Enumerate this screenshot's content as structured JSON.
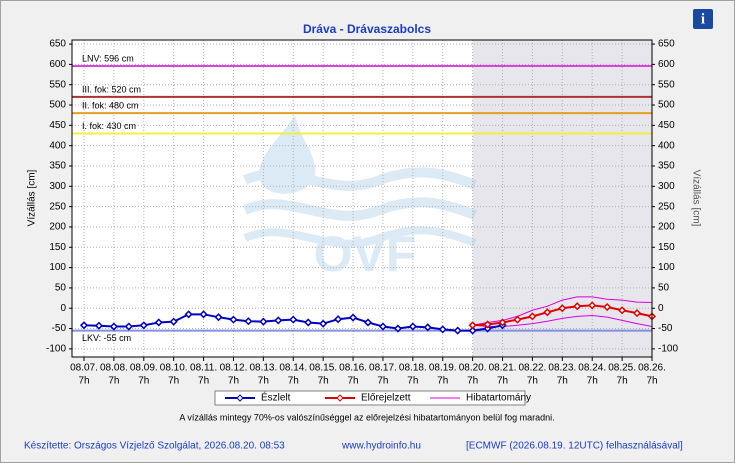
{
  "chart_data": {
    "type": "line",
    "title": "Dráva - Drávaszabolcs",
    "y_label": "Vízállás [cm]",
    "y2_label": "Vízállás [cm]",
    "info_button": "i",
    "watermark": "OVF",
    "categories": [
      "08.07.",
      null,
      "08.08.",
      null,
      "08.09.",
      null,
      "08.10.",
      null,
      "08.11.",
      null,
      "08.12.",
      null,
      "08.13.",
      null,
      "08.14.",
      null,
      "08.15.",
      null,
      "08.16.",
      null,
      "08.17.",
      null,
      "08.18.",
      null,
      "08.19.",
      null,
      "08.20.",
      null,
      "08.21.",
      null,
      "08.22.",
      null,
      "08.23.",
      null,
      "08.24.",
      null,
      "08.25.",
      null,
      "08.26."
    ],
    "x_hour_label": "7h",
    "ylim": [
      -120,
      660
    ],
    "yticks": [
      -100,
      -50,
      0,
      50,
      100,
      150,
      200,
      250,
      300,
      350,
      400,
      450,
      500,
      550,
      600,
      650
    ],
    "y2lim": [
      -120,
      660
    ],
    "y2ticks": [
      -100,
      -50,
      0,
      50,
      100,
      150,
      200,
      250,
      300,
      350,
      400,
      450,
      500,
      550,
      600,
      650
    ],
    "grid": true,
    "thresholds": [
      {
        "label": "LNV: 596 cm",
        "value": 596,
        "color": "#e040e0"
      },
      {
        "label": "III. fok: 520 cm",
        "value": 520,
        "color": "#b03030"
      },
      {
        "label": "II. fok: 480 cm",
        "value": 480,
        "color": "#e0a020"
      },
      {
        "label": "I. fok: 430 cm",
        "value": 430,
        "color": "#f0f040"
      },
      {
        "label": "LKV: -55 cm",
        "value": -55,
        "color": "#8090e0"
      }
    ],
    "series": [
      {
        "name": "Észlelt",
        "color": "#0000c0",
        "values": [
          -42,
          -43,
          -45,
          -45,
          -42,
          -35,
          -33,
          -15,
          -15,
          -22,
          -28,
          -32,
          -33,
          -30,
          -28,
          -35,
          -38,
          -27,
          -23,
          -35,
          -45,
          -50,
          -45,
          -47,
          -52,
          -55,
          -55,
          -50,
          -42,
          null,
          null,
          null,
          null,
          null,
          null,
          null,
          null,
          null,
          null
        ]
      },
      {
        "name": "Előrejelzett",
        "color": "#e00000",
        "values": [
          null,
          null,
          null,
          null,
          null,
          null,
          null,
          null,
          null,
          null,
          null,
          null,
          null,
          null,
          null,
          null,
          null,
          null,
          null,
          null,
          null,
          null,
          null,
          null,
          null,
          null,
          -42,
          -40,
          -35,
          -28,
          -20,
          -10,
          0,
          5,
          7,
          3,
          -5,
          -12,
          -20
        ]
      },
      {
        "name": "Hibatartomány",
        "color": "#dd00dd",
        "upper": [
          null,
          null,
          null,
          null,
          null,
          null,
          null,
          null,
          null,
          null,
          null,
          null,
          null,
          null,
          null,
          null,
          null,
          null,
          null,
          null,
          null,
          null,
          null,
          null,
          null,
          null,
          -42,
          -35,
          -30,
          -20,
          -5,
          5,
          20,
          28,
          28,
          22,
          20,
          15,
          14
        ],
        "lower": [
          null,
          null,
          null,
          null,
          null,
          null,
          null,
          null,
          null,
          null,
          null,
          null,
          null,
          null,
          null,
          null,
          null,
          null,
          null,
          null,
          null,
          null,
          null,
          null,
          null,
          null,
          -42,
          -45,
          -45,
          -42,
          -38,
          -32,
          -25,
          -20,
          -18,
          -22,
          -30,
          -38,
          -45
        ]
      }
    ],
    "note": "A vízállás mintegy 70%-os valószínűséggel az előrejelzési hibatartományon belül fog maradni.",
    "footer": [
      "Készítette: Országos Vízjelző Szolgálat, 2026.08.20. 08:53",
      "www.hydroinfo.hu",
      "[ECMWF (2026.08.19. 12UTC) felhasználásával]"
    ]
  }
}
